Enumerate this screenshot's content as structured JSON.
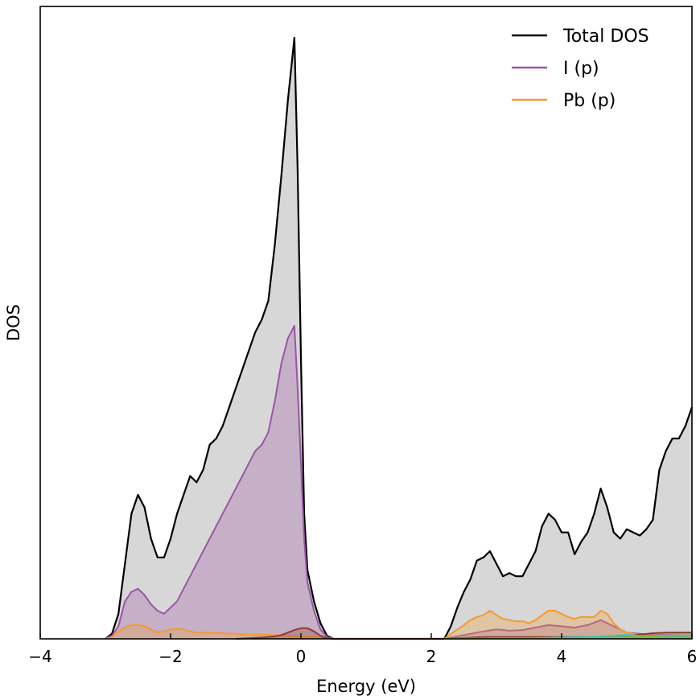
{
  "chart_data": {
    "type": "area",
    "title": "",
    "xlabel": "Energy (eV)",
    "ylabel": "DOS",
    "xlim": [
      -4,
      6
    ],
    "ylim": [
      0,
      1.01
    ],
    "xticks": [
      -4,
      -2,
      0,
      2,
      4,
      6
    ],
    "xtick_labels": [
      "−4",
      "−2",
      "0",
      "2",
      "4",
      "6"
    ],
    "yticks_shown": false,
    "grid": false,
    "legend": {
      "placement": "top-right"
    },
    "series": [
      {
        "name": "Total DOS",
        "color": "#000000",
        "fill": "#b0b0b0",
        "fill_opacity": 0.5,
        "legend": true,
        "points": [
          [
            -3.0,
            0
          ],
          [
            -2.9,
            0.008
          ],
          [
            -2.8,
            0.04
          ],
          [
            -2.7,
            0.12
          ],
          [
            -2.6,
            0.2
          ],
          [
            -2.5,
            0.23
          ],
          [
            -2.4,
            0.21
          ],
          [
            -2.3,
            0.16
          ],
          [
            -2.2,
            0.13
          ],
          [
            -2.1,
            0.13
          ],
          [
            -2.0,
            0.16
          ],
          [
            -1.9,
            0.2
          ],
          [
            -1.8,
            0.23
          ],
          [
            -1.7,
            0.26
          ],
          [
            -1.6,
            0.25
          ],
          [
            -1.5,
            0.27
          ],
          [
            -1.4,
            0.31
          ],
          [
            -1.3,
            0.32
          ],
          [
            -1.2,
            0.34
          ],
          [
            -1.1,
            0.37
          ],
          [
            -1.0,
            0.4
          ],
          [
            -0.9,
            0.43
          ],
          [
            -0.8,
            0.46
          ],
          [
            -0.7,
            0.49
          ],
          [
            -0.6,
            0.51
          ],
          [
            -0.5,
            0.54
          ],
          [
            -0.4,
            0.63
          ],
          [
            -0.3,
            0.74
          ],
          [
            -0.2,
            0.86
          ],
          [
            -0.1,
            0.96
          ],
          [
            -0.05,
            0.75
          ],
          [
            0.0,
            0.45
          ],
          [
            0.05,
            0.2
          ],
          [
            0.1,
            0.11
          ],
          [
            0.2,
            0.06
          ],
          [
            0.3,
            0.025
          ],
          [
            0.4,
            0.005
          ],
          [
            0.5,
            0
          ],
          [
            2.2,
            0
          ],
          [
            2.3,
            0.02
          ],
          [
            2.4,
            0.05
          ],
          [
            2.5,
            0.075
          ],
          [
            2.6,
            0.095
          ],
          [
            2.7,
            0.125
          ],
          [
            2.8,
            0.13
          ],
          [
            2.9,
            0.14
          ],
          [
            3.0,
            0.12
          ],
          [
            3.1,
            0.1
          ],
          [
            3.2,
            0.105
          ],
          [
            3.3,
            0.1
          ],
          [
            3.4,
            0.1
          ],
          [
            3.5,
            0.12
          ],
          [
            3.6,
            0.14
          ],
          [
            3.7,
            0.18
          ],
          [
            3.8,
            0.2
          ],
          [
            3.9,
            0.19
          ],
          [
            4.0,
            0.17
          ],
          [
            4.1,
            0.17
          ],
          [
            4.2,
            0.135
          ],
          [
            4.3,
            0.155
          ],
          [
            4.4,
            0.17
          ],
          [
            4.5,
            0.2
          ],
          [
            4.6,
            0.24
          ],
          [
            4.7,
            0.21
          ],
          [
            4.8,
            0.17
          ],
          [
            4.9,
            0.16
          ],
          [
            5.0,
            0.175
          ],
          [
            5.1,
            0.17
          ],
          [
            5.2,
            0.165
          ],
          [
            5.3,
            0.175
          ],
          [
            5.4,
            0.19
          ],
          [
            5.5,
            0.27
          ],
          [
            5.6,
            0.3
          ],
          [
            5.7,
            0.32
          ],
          [
            5.8,
            0.32
          ],
          [
            5.9,
            0.34
          ],
          [
            6.0,
            0.37
          ]
        ]
      },
      {
        "name": "I (p)",
        "color": "#9b55a7",
        "fill": "#9b55a7",
        "fill_opacity": 0.3,
        "legend": true,
        "points": [
          [
            -3.0,
            0
          ],
          [
            -2.9,
            0.005
          ],
          [
            -2.8,
            0.02
          ],
          [
            -2.7,
            0.06
          ],
          [
            -2.6,
            0.075
          ],
          [
            -2.5,
            0.08
          ],
          [
            -2.4,
            0.07
          ],
          [
            -2.3,
            0.055
          ],
          [
            -2.2,
            0.045
          ],
          [
            -2.1,
            0.04
          ],
          [
            -2.0,
            0.05
          ],
          [
            -1.9,
            0.06
          ],
          [
            -1.8,
            0.08
          ],
          [
            -1.7,
            0.1
          ],
          [
            -1.6,
            0.12
          ],
          [
            -1.5,
            0.14
          ],
          [
            -1.4,
            0.16
          ],
          [
            -1.3,
            0.18
          ],
          [
            -1.2,
            0.2
          ],
          [
            -1.1,
            0.22
          ],
          [
            -1.0,
            0.24
          ],
          [
            -0.9,
            0.26
          ],
          [
            -0.8,
            0.28
          ],
          [
            -0.7,
            0.3
          ],
          [
            -0.6,
            0.31
          ],
          [
            -0.5,
            0.33
          ],
          [
            -0.4,
            0.38
          ],
          [
            -0.3,
            0.44
          ],
          [
            -0.2,
            0.48
          ],
          [
            -0.1,
            0.5
          ],
          [
            -0.05,
            0.4
          ],
          [
            0.0,
            0.28
          ],
          [
            0.05,
            0.16
          ],
          [
            0.1,
            0.09
          ],
          [
            0.2,
            0.045
          ],
          [
            0.3,
            0.015
          ],
          [
            0.4,
            0.003
          ],
          [
            0.5,
            0
          ],
          [
            2.2,
            0
          ],
          [
            2.4,
            0.004
          ],
          [
            2.6,
            0.008
          ],
          [
            2.8,
            0.012
          ],
          [
            3.0,
            0.015
          ],
          [
            3.2,
            0.013
          ],
          [
            3.4,
            0.014
          ],
          [
            3.6,
            0.018
          ],
          [
            3.8,
            0.022
          ],
          [
            4.0,
            0.02
          ],
          [
            4.2,
            0.018
          ],
          [
            4.4,
            0.022
          ],
          [
            4.6,
            0.03
          ],
          [
            4.8,
            0.02
          ],
          [
            5.0,
            0.01
          ],
          [
            5.4,
            0.006
          ],
          [
            6.0,
            0.005
          ]
        ]
      },
      {
        "name": "Pb (p)",
        "color": "#f39a30",
        "fill": "#f39a30",
        "fill_opacity": 0.3,
        "legend": true,
        "points": [
          [
            -3.0,
            0
          ],
          [
            -2.9,
            0.003
          ],
          [
            -2.8,
            0.012
          ],
          [
            -2.7,
            0.018
          ],
          [
            -2.6,
            0.022
          ],
          [
            -2.5,
            0.022
          ],
          [
            -2.4,
            0.02
          ],
          [
            -2.3,
            0.015
          ],
          [
            -2.2,
            0.01
          ],
          [
            -2.1,
            0.012
          ],
          [
            -2.0,
            0.015
          ],
          [
            -1.9,
            0.016
          ],
          [
            -1.8,
            0.015
          ],
          [
            -1.7,
            0.012
          ],
          [
            -1.6,
            0.01
          ],
          [
            -1.4,
            0.01
          ],
          [
            -1.2,
            0.009
          ],
          [
            -1.0,
            0.008
          ],
          [
            -0.8,
            0.007
          ],
          [
            -0.6,
            0.007
          ],
          [
            -0.4,
            0.006
          ],
          [
            -0.2,
            0.005
          ],
          [
            0.0,
            0.004
          ],
          [
            0.2,
            0.003
          ],
          [
            0.4,
            0.001
          ],
          [
            0.5,
            0
          ],
          [
            2.2,
            0
          ],
          [
            2.3,
            0.008
          ],
          [
            2.4,
            0.015
          ],
          [
            2.5,
            0.022
          ],
          [
            2.6,
            0.03
          ],
          [
            2.7,
            0.035
          ],
          [
            2.8,
            0.038
          ],
          [
            2.9,
            0.045
          ],
          [
            3.0,
            0.038
          ],
          [
            3.1,
            0.032
          ],
          [
            3.2,
            0.03
          ],
          [
            3.3,
            0.028
          ],
          [
            3.4,
            0.028
          ],
          [
            3.5,
            0.025
          ],
          [
            3.6,
            0.03
          ],
          [
            3.7,
            0.038
          ],
          [
            3.8,
            0.045
          ],
          [
            3.9,
            0.045
          ],
          [
            4.0,
            0.04
          ],
          [
            4.1,
            0.035
          ],
          [
            4.2,
            0.032
          ],
          [
            4.3,
            0.035
          ],
          [
            4.4,
            0.035
          ],
          [
            4.5,
            0.035
          ],
          [
            4.6,
            0.045
          ],
          [
            4.7,
            0.04
          ],
          [
            4.8,
            0.025
          ],
          [
            4.9,
            0.015
          ],
          [
            5.0,
            0.01
          ],
          [
            5.2,
            0.006
          ],
          [
            5.6,
            0.005
          ],
          [
            6.0,
            0.005
          ]
        ]
      },
      {
        "color": "#8b3a2a",
        "fill": "#8b3a2a",
        "fill_opacity": 0.3,
        "legend": false,
        "points": [
          [
            -1.0,
            0
          ],
          [
            -0.8,
            0.001
          ],
          [
            -0.6,
            0.002
          ],
          [
            -0.4,
            0.004
          ],
          [
            -0.3,
            0.006
          ],
          [
            -0.2,
            0.01
          ],
          [
            -0.1,
            0.014
          ],
          [
            0.0,
            0.017
          ],
          [
            0.1,
            0.017
          ],
          [
            0.2,
            0.012
          ],
          [
            0.3,
            0.005
          ],
          [
            0.4,
            0.001
          ],
          [
            0.5,
            0
          ],
          [
            2.2,
            0
          ],
          [
            2.8,
            0.003
          ],
          [
            3.2,
            0.003
          ],
          [
            3.6,
            0.003
          ],
          [
            4.0,
            0.003
          ],
          [
            4.4,
            0.003
          ],
          [
            4.6,
            0.003
          ],
          [
            4.8,
            0.003
          ],
          [
            5.0,
            0.004
          ],
          [
            5.2,
            0.007
          ],
          [
            5.4,
            0.009
          ],
          [
            5.6,
            0.01
          ],
          [
            5.8,
            0.01
          ],
          [
            6.0,
            0.01
          ]
        ]
      },
      {
        "color": "#29c7d4",
        "fill": "#29c7d4",
        "fill_opacity": 0.3,
        "legend": false,
        "points": [
          [
            2.2,
            0
          ],
          [
            3.0,
            0.001
          ],
          [
            3.5,
            0.001
          ],
          [
            4.0,
            0.002
          ],
          [
            4.4,
            0.003
          ],
          [
            4.6,
            0.004
          ],
          [
            4.8,
            0.005
          ],
          [
            5.0,
            0.006
          ],
          [
            5.2,
            0.005
          ],
          [
            5.4,
            0.004
          ],
          [
            5.6,
            0.003
          ],
          [
            5.8,
            0.003
          ],
          [
            6.0,
            0.003
          ]
        ]
      },
      {
        "color": "#8ab33c",
        "fill": "#8ab33c",
        "fill_opacity": 0.3,
        "legend": false,
        "points": [
          [
            2.2,
            0
          ],
          [
            3.0,
            0.001
          ],
          [
            4.0,
            0.001
          ],
          [
            4.6,
            0.002
          ],
          [
            5.0,
            0.003
          ],
          [
            5.4,
            0.004
          ],
          [
            5.6,
            0.005
          ],
          [
            5.8,
            0.005
          ],
          [
            6.0,
            0.005
          ]
        ]
      }
    ]
  }
}
